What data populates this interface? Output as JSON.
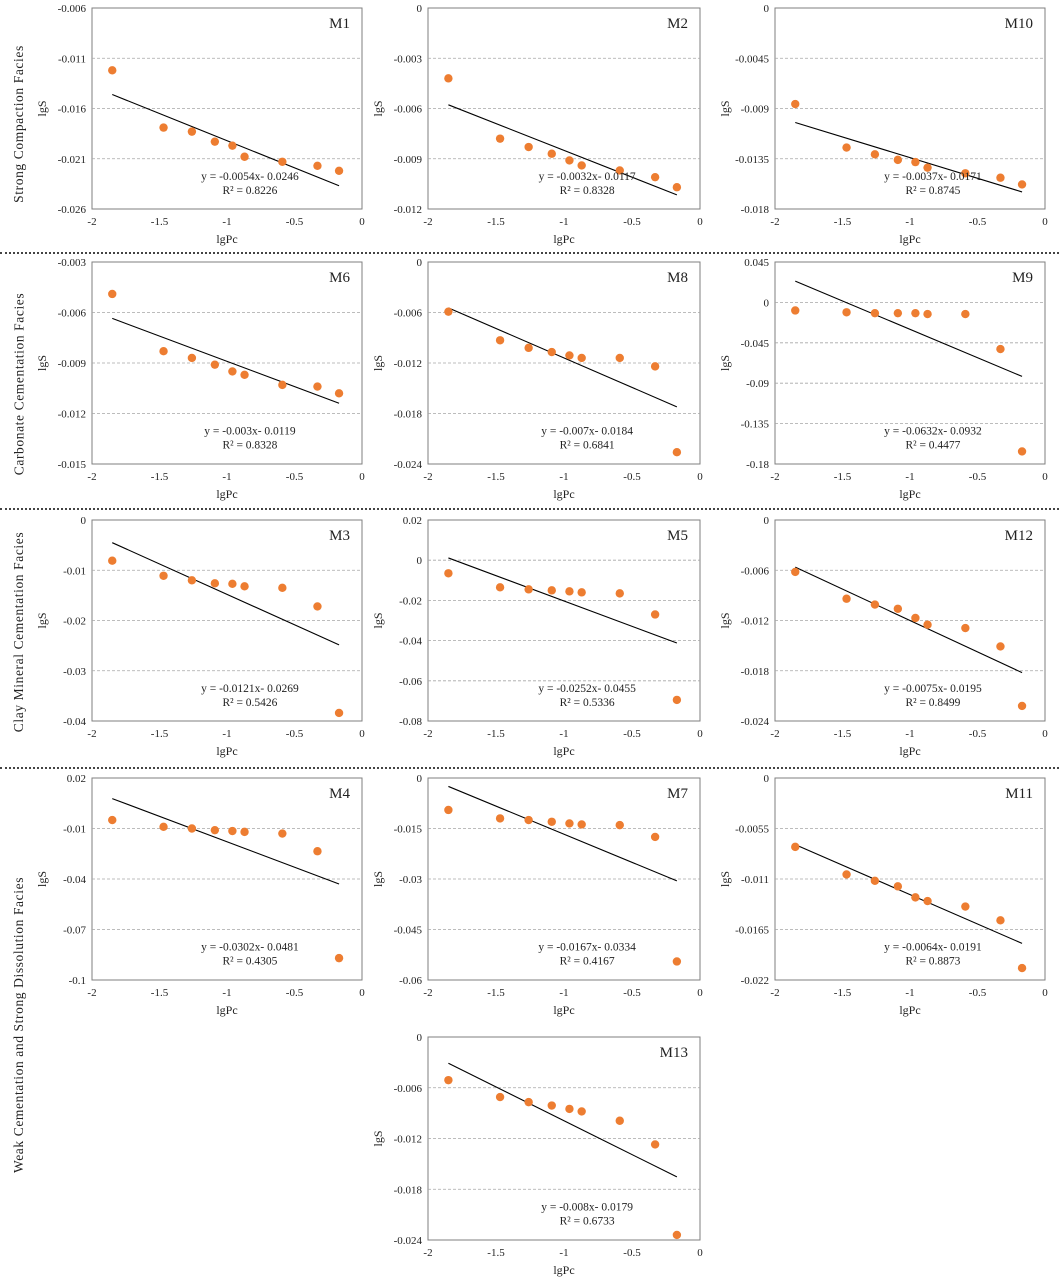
{
  "figure": {
    "row_labels": [
      "Strong  Compaction  Facies",
      "Carbonate  Cementation  Facies",
      "Clay  Mineral  Cementation  Facies",
      "Weak  Cementation  and  Strong  Dissolution  Facies"
    ],
    "colors": {
      "points": "#ED7D31",
      "fit_line": "#000000",
      "grid": "#A6A6A6",
      "axis": "#7F7F7F"
    }
  },
  "chart_data": [
    {
      "type": "scatter",
      "title": "M1",
      "xlabel": "lgPc",
      "ylabel": "lgS",
      "xlim": [
        -2,
        0
      ],
      "xticks": [
        -2,
        -1.5,
        -1,
        -0.5,
        0
      ],
      "xtick_labels": [
        "-2",
        "-1.5",
        "-1",
        "-0.5",
        "0"
      ],
      "ylim": [
        -0.026,
        -0.006
      ],
      "yticks": [
        -0.026,
        -0.021,
        -0.016,
        -0.011,
        -0.006
      ],
      "ytick_labels": [
        "-0.026",
        "-0.021",
        "-0.016",
        "-0.011",
        "-0.006"
      ],
      "points": [
        [
          -1.85,
          -0.0122
        ],
        [
          -1.47,
          -0.0179
        ],
        [
          -1.26,
          -0.0183
        ],
        [
          -1.09,
          -0.0193
        ],
        [
          -0.96,
          -0.0197
        ],
        [
          -0.87,
          -0.0208
        ],
        [
          -0.59,
          -0.0213
        ],
        [
          -0.33,
          -0.0217
        ],
        [
          -0.17,
          -0.0222
        ]
      ],
      "fit": {
        "slope": -0.0054,
        "intercept": -0.0246,
        "x_range": [
          -1.85,
          -0.17
        ]
      },
      "equation": "y = -0.0054x- 0.0246",
      "r2": "R² = 0.8226"
    },
    {
      "type": "scatter",
      "title": "M2",
      "xlabel": "lgPc",
      "ylabel": "lgS",
      "xlim": [
        -2,
        0
      ],
      "xticks": [
        -2,
        -1.5,
        -1,
        -0.5,
        0
      ],
      "xtick_labels": [
        "-2",
        "-1.5",
        "-1",
        "-0.5",
        "0"
      ],
      "ylim": [
        -0.012,
        0
      ],
      "yticks": [
        -0.012,
        -0.009,
        -0.006,
        -0.003,
        0
      ],
      "ytick_labels": [
        "-0.012",
        "-0.009",
        "-0.006",
        "-0.003",
        "0"
      ],
      "points": [
        [
          -1.85,
          -0.0042
        ],
        [
          -1.47,
          -0.0078
        ],
        [
          -1.26,
          -0.0083
        ],
        [
          -1.09,
          -0.0087
        ],
        [
          -0.96,
          -0.0091
        ],
        [
          -0.87,
          -0.0094
        ],
        [
          -0.59,
          -0.0097
        ],
        [
          -0.33,
          -0.0101
        ],
        [
          -0.17,
          -0.0107
        ]
      ],
      "fit": {
        "slope": -0.0032,
        "intercept": -0.0117,
        "x_range": [
          -1.85,
          -0.17
        ]
      },
      "equation": "y = -0.0032x- 0.0117",
      "r2": "R² = 0.8328"
    },
    {
      "type": "scatter",
      "title": "M10",
      "xlabel": "lgPc",
      "ylabel": "lgS",
      "xlim": [
        -2,
        0
      ],
      "xticks": [
        -2,
        -1.5,
        -1,
        -0.5,
        0
      ],
      "xtick_labels": [
        "-2",
        "-1.5",
        "-1",
        "-0.5",
        "0"
      ],
      "ylim": [
        -0.018,
        0
      ],
      "yticks": [
        -0.018,
        -0.0135,
        -0.009,
        -0.0045,
        0
      ],
      "ytick_labels": [
        "-0.018",
        "-0.0135",
        "-0.009",
        "-0.0045",
        "0"
      ],
      "points": [
        [
          -1.85,
          -0.0086
        ],
        [
          -1.47,
          -0.0125
        ],
        [
          -1.26,
          -0.0131
        ],
        [
          -1.09,
          -0.0136
        ],
        [
          -0.96,
          -0.0138
        ],
        [
          -0.87,
          -0.0143
        ],
        [
          -0.59,
          -0.0148
        ],
        [
          -0.33,
          -0.0152
        ],
        [
          -0.17,
          -0.0158
        ]
      ],
      "fit": {
        "slope": -0.0037,
        "intercept": -0.0171,
        "x_range": [
          -1.85,
          -0.17
        ]
      },
      "equation": "y = -0.0037x- 0.0171",
      "r2": "R² = 0.8745"
    },
    {
      "type": "scatter",
      "title": "M6",
      "xlabel": "lgPc",
      "ylabel": "lgS",
      "xlim": [
        -2,
        0
      ],
      "xticks": [
        -2,
        -1.5,
        -1,
        -0.5,
        0
      ],
      "xtick_labels": [
        "-2",
        "-1.5",
        "-1",
        "-0.5",
        "0"
      ],
      "ylim": [
        -0.015,
        -0.003
      ],
      "yticks": [
        -0.015,
        -0.012,
        -0.009,
        -0.006,
        -0.003
      ],
      "ytick_labels": [
        "-0.015",
        "-0.012",
        "-0.009",
        "-0.006",
        "-0.003"
      ],
      "points": [
        [
          -1.85,
          -0.0049
        ],
        [
          -1.47,
          -0.0083
        ],
        [
          -1.26,
          -0.0087
        ],
        [
          -1.09,
          -0.0091
        ],
        [
          -0.96,
          -0.0095
        ],
        [
          -0.87,
          -0.0097
        ],
        [
          -0.59,
          -0.0103
        ],
        [
          -0.33,
          -0.0104
        ],
        [
          -0.17,
          -0.0108
        ]
      ],
      "fit": {
        "slope": -0.003,
        "intercept": -0.0119,
        "x_range": [
          -1.85,
          -0.17
        ]
      },
      "equation": "y = -0.003x- 0.0119",
      "r2": "R² = 0.8328"
    },
    {
      "type": "scatter",
      "title": "M8",
      "xlabel": "lgPc",
      "ylabel": "lgS",
      "xlim": [
        -2,
        0
      ],
      "xticks": [
        -2,
        -1.5,
        -1,
        -0.5,
        0
      ],
      "xtick_labels": [
        "-2",
        "-1.5",
        "-1",
        "-0.5",
        "0"
      ],
      "ylim": [
        -0.024,
        0
      ],
      "yticks": [
        -0.024,
        -0.018,
        -0.012,
        -0.006,
        0
      ],
      "ytick_labels": [
        "-0.024",
        "-0.018",
        "-0.012",
        "-0.006",
        "0"
      ],
      "points": [
        [
          -1.85,
          -0.0059
        ],
        [
          -1.47,
          -0.0093
        ],
        [
          -1.26,
          -0.0102
        ],
        [
          -1.09,
          -0.0107
        ],
        [
          -0.96,
          -0.0111
        ],
        [
          -0.87,
          -0.0114
        ],
        [
          -0.59,
          -0.0114
        ],
        [
          -0.33,
          -0.0124
        ],
        [
          -0.17,
          -0.0226
        ]
      ],
      "fit": {
        "slope": -0.007,
        "intercept": -0.0184,
        "x_range": [
          -1.85,
          -0.17
        ]
      },
      "equation": "y = -0.007x- 0.0184",
      "r2": "R² = 0.6841"
    },
    {
      "type": "scatter",
      "title": "M9",
      "xlabel": "lgPc",
      "ylabel": "lgS",
      "xlim": [
        -2,
        0
      ],
      "xticks": [
        -2,
        -1.5,
        -1,
        -0.5,
        0
      ],
      "xtick_labels": [
        "-2",
        "-1.5",
        "-1",
        "-0.5",
        "0"
      ],
      "ylim": [
        -0.18,
        0.045
      ],
      "yticks": [
        -0.18,
        -0.135,
        -0.09,
        -0.045,
        0,
        0.045
      ],
      "ytick_labels": [
        "-0.18",
        "-0.135",
        "-0.09",
        "-0.045",
        "0",
        "0.045"
      ],
      "points": [
        [
          -1.85,
          -0.009
        ],
        [
          -1.47,
          -0.011
        ],
        [
          -1.26,
          -0.012
        ],
        [
          -1.09,
          -0.012
        ],
        [
          -0.96,
          -0.012
        ],
        [
          -0.87,
          -0.013
        ],
        [
          -0.59,
          -0.013
        ],
        [
          -0.33,
          -0.052
        ],
        [
          -0.17,
          -0.166
        ]
      ],
      "fit": {
        "slope": -0.0632,
        "intercept": -0.0932,
        "x_range": [
          -1.85,
          -0.17
        ]
      },
      "equation": "y = -0.0632x- 0.0932",
      "r2": "R² = 0.4477"
    },
    {
      "type": "scatter",
      "title": "M3",
      "xlabel": "lgPc",
      "ylabel": "lgS",
      "xlim": [
        -2,
        0
      ],
      "xticks": [
        -2,
        -1.5,
        -1,
        -0.5,
        0
      ],
      "xtick_labels": [
        "-2",
        "-1.5",
        "-1",
        "-0.5",
        "0"
      ],
      "ylim": [
        -0.04,
        0
      ],
      "yticks": [
        -0.04,
        -0.03,
        -0.02,
        -0.01,
        0
      ],
      "ytick_labels": [
        "-0.04",
        "-0.03",
        "-0.02",
        "-0.01",
        "0"
      ],
      "points": [
        [
          -1.85,
          -0.0081
        ],
        [
          -1.47,
          -0.0111
        ],
        [
          -1.26,
          -0.012
        ],
        [
          -1.09,
          -0.0126
        ],
        [
          -0.96,
          -0.0127
        ],
        [
          -0.87,
          -0.0132
        ],
        [
          -0.59,
          -0.0135
        ],
        [
          -0.33,
          -0.0172
        ],
        [
          -0.17,
          -0.0384
        ]
      ],
      "fit": {
        "slope": -0.0121,
        "intercept": -0.0269,
        "x_range": [
          -1.85,
          -0.17
        ]
      },
      "equation": "y = -0.0121x- 0.0269",
      "r2": "R² = 0.5426"
    },
    {
      "type": "scatter",
      "title": "M5",
      "xlabel": "lgPc",
      "ylabel": "lgS",
      "xlim": [
        -2,
        0
      ],
      "xticks": [
        -2,
        -1.5,
        -1,
        -0.5,
        0
      ],
      "xtick_labels": [
        "-2",
        "-1.5",
        "-1",
        "-0.5",
        "0"
      ],
      "ylim": [
        -0.08,
        0.02
      ],
      "yticks": [
        -0.08,
        -0.06,
        -0.04,
        -0.02,
        0,
        0.02
      ],
      "ytick_labels": [
        "-0.08",
        "-0.06",
        "-0.04",
        "-0.02",
        "0",
        "0.02"
      ],
      "points": [
        [
          -1.85,
          -0.0065
        ],
        [
          -1.47,
          -0.0135
        ],
        [
          -1.26,
          -0.0145
        ],
        [
          -1.09,
          -0.015
        ],
        [
          -0.96,
          -0.0155
        ],
        [
          -0.87,
          -0.016
        ],
        [
          -0.59,
          -0.0165
        ],
        [
          -0.33,
          -0.027
        ],
        [
          -0.17,
          -0.0695
        ]
      ],
      "fit": {
        "slope": -0.0252,
        "intercept": -0.0455,
        "x_range": [
          -1.85,
          -0.17
        ]
      },
      "equation": "y = -0.0252x- 0.0455",
      "r2": "R² = 0.5336"
    },
    {
      "type": "scatter",
      "title": "M12",
      "xlabel": "lgPc",
      "ylabel": "lgS",
      "xlim": [
        -2,
        0
      ],
      "xticks": [
        -2,
        -1.5,
        -1,
        -0.5,
        0
      ],
      "xtick_labels": [
        "-2",
        "-1.5",
        "-1",
        "-0.5",
        "0"
      ],
      "ylim": [
        -0.024,
        0
      ],
      "yticks": [
        -0.024,
        -0.018,
        -0.012,
        -0.006,
        0
      ],
      "ytick_labels": [
        "-0.024",
        "-0.018",
        "-0.012",
        "-0.006",
        "0"
      ],
      "points": [
        [
          -1.85,
          -0.0062
        ],
        [
          -1.47,
          -0.0094
        ],
        [
          -1.26,
          -0.0101
        ],
        [
          -1.09,
          -0.0106
        ],
        [
          -0.96,
          -0.0117
        ],
        [
          -0.87,
          -0.0125
        ],
        [
          -0.59,
          -0.0129
        ],
        [
          -0.33,
          -0.0151
        ],
        [
          -0.17,
          -0.0222
        ]
      ],
      "fit": {
        "slope": -0.0075,
        "intercept": -0.0195,
        "x_range": [
          -1.85,
          -0.17
        ]
      },
      "equation": "y = -0.0075x- 0.0195",
      "r2": "R² = 0.8499"
    },
    {
      "type": "scatter",
      "title": "M4",
      "xlabel": "lgPc",
      "ylabel": "lgS",
      "xlim": [
        -2,
        0
      ],
      "xticks": [
        -2,
        -1.5,
        -1,
        -0.5,
        0
      ],
      "xtick_labels": [
        "-2",
        "-1.5",
        "-1",
        "-0.5",
        "0"
      ],
      "ylim": [
        -0.1,
        0.02
      ],
      "yticks": [
        -0.1,
        -0.07,
        -0.04,
        -0.01,
        0.02
      ],
      "ytick_labels": [
        "-0.1",
        "-0.07",
        "-0.04",
        "-0.01",
        "0.02"
      ],
      "points": [
        [
          -1.85,
          -0.005
        ],
        [
          -1.47,
          -0.009
        ],
        [
          -1.26,
          -0.01
        ],
        [
          -1.09,
          -0.011
        ],
        [
          -0.96,
          -0.0115
        ],
        [
          -0.87,
          -0.012
        ],
        [
          -0.59,
          -0.013
        ],
        [
          -0.33,
          -0.0235
        ],
        [
          -0.17,
          -0.087
        ]
      ],
      "fit": {
        "slope": -0.0302,
        "intercept": -0.0481,
        "x_range": [
          -1.85,
          -0.17
        ]
      },
      "equation": "y = -0.0302x- 0.0481",
      "r2": "R² = 0.4305"
    },
    {
      "type": "scatter",
      "title": "M7",
      "xlabel": "lgPc",
      "ylabel": "lgS",
      "xlim": [
        -2,
        0
      ],
      "xticks": [
        -2,
        -1.5,
        -1,
        -0.5,
        0
      ],
      "xtick_labels": [
        "-2",
        "-1.5",
        "-1",
        "-0.5",
        "0"
      ],
      "ylim": [
        -0.06,
        0
      ],
      "yticks": [
        -0.06,
        -0.045,
        -0.03,
        -0.015,
        0
      ],
      "ytick_labels": [
        "-0.06",
        "-0.045",
        "-0.03",
        "-0.015",
        "0"
      ],
      "points": [
        [
          -1.85,
          -0.0095
        ],
        [
          -1.47,
          -0.012
        ],
        [
          -1.26,
          -0.0125
        ],
        [
          -1.09,
          -0.013
        ],
        [
          -0.96,
          -0.0135
        ],
        [
          -0.87,
          -0.0138
        ],
        [
          -0.59,
          -0.014
        ],
        [
          -0.33,
          -0.0175
        ],
        [
          -0.17,
          -0.0545
        ]
      ],
      "fit": {
        "slope": -0.0167,
        "intercept": -0.0334,
        "x_range": [
          -1.85,
          -0.17
        ]
      },
      "equation": "y = -0.0167x- 0.0334",
      "r2": "R² = 0.4167"
    },
    {
      "type": "scatter",
      "title": "M11",
      "xlabel": "lgPc",
      "ylabel": "lgS",
      "xlim": [
        -2,
        0
      ],
      "xticks": [
        -2,
        -1.5,
        -1,
        -0.5,
        0
      ],
      "xtick_labels": [
        "-2",
        "-1.5",
        "-1",
        "-0.5",
        "0"
      ],
      "ylim": [
        -0.022,
        0
      ],
      "yticks": [
        -0.022,
        -0.0165,
        -0.011,
        -0.0055,
        0
      ],
      "ytick_labels": [
        "-0.022",
        "-0.0165",
        "-0.011",
        "-0.0055",
        "0"
      ],
      "points": [
        [
          -1.85,
          -0.0075
        ],
        [
          -1.47,
          -0.0105
        ],
        [
          -1.26,
          -0.0112
        ],
        [
          -1.09,
          -0.0118
        ],
        [
          -0.96,
          -0.013
        ],
        [
          -0.87,
          -0.0134
        ],
        [
          -0.59,
          -0.014
        ],
        [
          -0.33,
          -0.0155
        ],
        [
          -0.17,
          -0.0207
        ]
      ],
      "fit": {
        "slope": -0.0064,
        "intercept": -0.0191,
        "x_range": [
          -1.85,
          -0.17
        ]
      },
      "equation": "y = -0.0064x- 0.0191",
      "r2": "R² = 0.8873"
    },
    {
      "type": "scatter",
      "title": "M13",
      "xlabel": "lgPc",
      "ylabel": "lgS",
      "xlim": [
        -2,
        0
      ],
      "xticks": [
        -2,
        -1.5,
        -1,
        -0.5,
        0
      ],
      "xtick_labels": [
        "-2",
        "-1.5",
        "-1",
        "-0.5",
        "0"
      ],
      "ylim": [
        -0.024,
        0
      ],
      "yticks": [
        -0.024,
        -0.018,
        -0.012,
        -0.006,
        0
      ],
      "ytick_labels": [
        "-0.024",
        "-0.018",
        "-0.012",
        "-0.006",
        "0"
      ],
      "points": [
        [
          -1.85,
          -0.0051
        ],
        [
          -1.47,
          -0.0071
        ],
        [
          -1.26,
          -0.0077
        ],
        [
          -1.09,
          -0.0081
        ],
        [
          -0.96,
          -0.0085
        ],
        [
          -0.87,
          -0.0088
        ],
        [
          -0.59,
          -0.0099
        ],
        [
          -0.33,
          -0.0127
        ],
        [
          -0.17,
          -0.0234
        ]
      ],
      "fit": {
        "slope": -0.008,
        "intercept": -0.0179,
        "x_range": [
          -1.85,
          -0.17
        ]
      },
      "equation": "y = -0.008x- 0.0179",
      "r2": "R² = 0.6733"
    }
  ]
}
